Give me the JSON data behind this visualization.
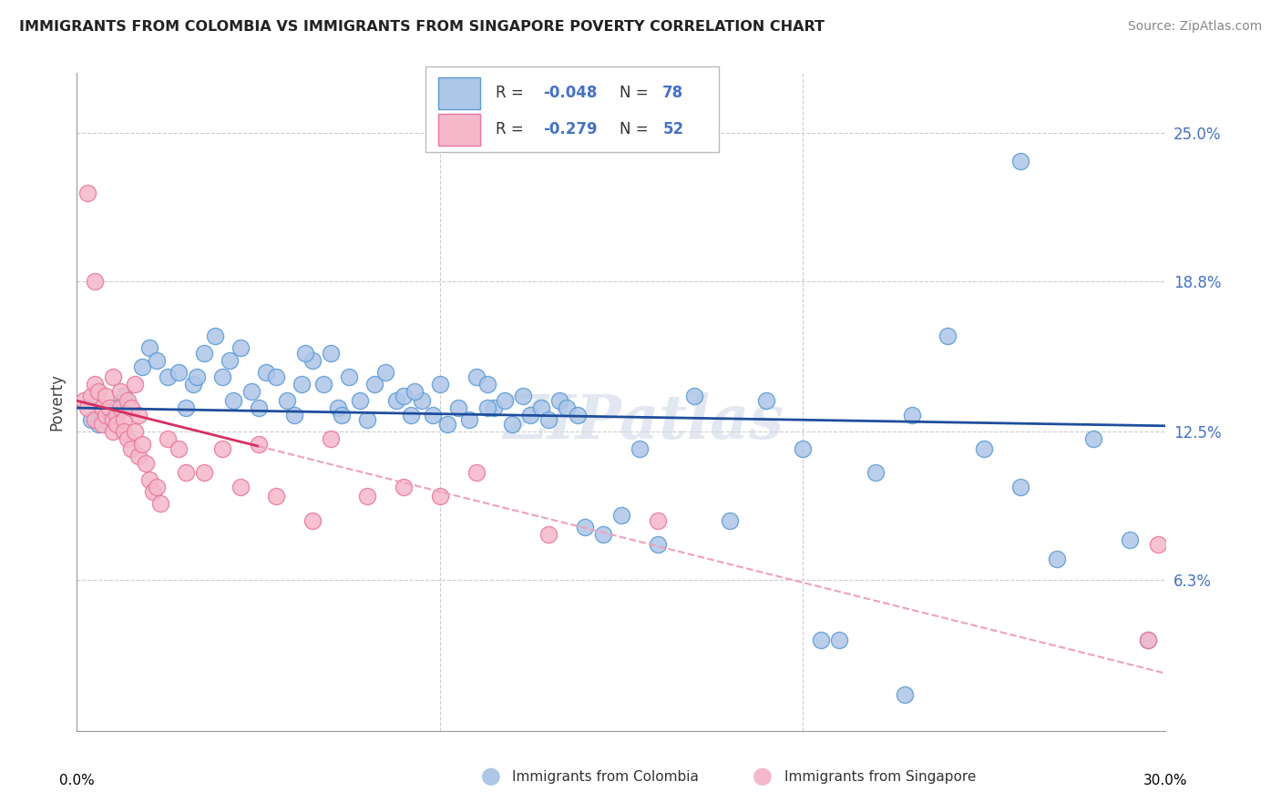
{
  "title": "IMMIGRANTS FROM COLOMBIA VS IMMIGRANTS FROM SINGAPORE POVERTY CORRELATION CHART",
  "source": "Source: ZipAtlas.com",
  "ylabel": "Poverty",
  "ytick_values": [
    6.3,
    12.5,
    18.8,
    25.0
  ],
  "ytick_labels": [
    "6.3%",
    "12.5%",
    "18.8%",
    "25.0%"
  ],
  "xlim": [
    0.0,
    30.0
  ],
  "ylim": [
    0.0,
    27.5
  ],
  "colombia_color": "#aec6e8",
  "singapore_color": "#f5b8cb",
  "colombia_edge": "#5b9bd5",
  "singapore_edge": "#e8789a",
  "trend_colombia_color": "#1f4e9c",
  "trend_singapore_solid": "#d63060",
  "trend_singapore_dash": "#f0a0bb",
  "legend_r_col": "-0.048",
  "legend_n_col": "78",
  "legend_r_sin": "-0.279",
  "legend_n_sin": "52",
  "watermark": "ZIPatlas",
  "colombia_x": [
    0.4,
    0.6,
    1.0,
    1.3,
    1.8,
    2.0,
    2.2,
    2.5,
    2.8,
    3.0,
    3.2,
    3.5,
    3.8,
    4.0,
    4.2,
    4.5,
    4.8,
    5.0,
    5.2,
    5.5,
    5.8,
    6.0,
    6.2,
    6.5,
    6.8,
    7.0,
    7.2,
    7.5,
    7.8,
    8.0,
    8.2,
    8.5,
    8.8,
    9.0,
    9.2,
    9.5,
    9.8,
    10.0,
    10.2,
    10.5,
    10.8,
    11.0,
    11.3,
    11.5,
    11.8,
    12.0,
    12.3,
    12.5,
    12.8,
    13.0,
    13.3,
    13.5,
    14.0,
    14.5,
    15.0,
    15.5,
    16.0,
    17.0,
    18.0,
    19.0,
    20.0,
    21.0,
    22.0,
    23.0,
    24.0,
    25.0,
    26.0,
    27.0,
    28.0,
    29.0,
    29.5,
    3.3,
    4.3,
    6.3,
    7.3,
    9.3,
    11.3,
    13.8
  ],
  "colombia_y": [
    13.0,
    12.8,
    13.5,
    14.0,
    15.2,
    16.0,
    15.5,
    14.8,
    15.0,
    13.5,
    14.5,
    15.8,
    16.5,
    14.8,
    15.5,
    16.0,
    14.2,
    13.5,
    15.0,
    14.8,
    13.8,
    13.2,
    14.5,
    15.5,
    14.5,
    15.8,
    13.5,
    14.8,
    13.8,
    13.0,
    14.5,
    15.0,
    13.8,
    14.0,
    13.2,
    13.8,
    13.2,
    14.5,
    12.8,
    13.5,
    13.0,
    14.8,
    14.5,
    13.5,
    13.8,
    12.8,
    14.0,
    13.2,
    13.5,
    13.0,
    13.8,
    13.5,
    8.5,
    8.2,
    9.0,
    11.8,
    7.8,
    14.0,
    8.8,
    13.8,
    11.8,
    3.8,
    10.8,
    13.2,
    16.5,
    11.8,
    10.2,
    7.2,
    12.2,
    8.0,
    3.8,
    14.8,
    13.8,
    15.8,
    13.2,
    14.2,
    13.5,
    13.2
  ],
  "singapore_x": [
    0.2,
    0.3,
    0.4,
    0.5,
    0.5,
    0.6,
    0.7,
    0.7,
    0.8,
    0.8,
    0.9,
    1.0,
    1.0,
    1.0,
    1.1,
    1.1,
    1.2,
    1.2,
    1.3,
    1.3,
    1.4,
    1.4,
    1.5,
    1.5,
    1.6,
    1.6,
    1.7,
    1.7,
    1.8,
    1.9,
    2.0,
    2.1,
    2.2,
    2.3,
    2.5,
    2.8,
    3.0,
    3.5,
    4.0,
    4.5,
    5.0,
    5.5,
    6.5,
    7.0,
    8.0,
    9.0,
    10.0,
    11.0,
    13.0,
    16.0,
    29.5,
    29.8
  ],
  "singapore_y": [
    13.8,
    13.5,
    14.0,
    14.5,
    13.0,
    14.2,
    13.5,
    12.8,
    14.0,
    13.2,
    13.5,
    13.0,
    12.5,
    14.8,
    13.2,
    12.8,
    14.2,
    13.5,
    13.0,
    12.5,
    13.8,
    12.2,
    13.5,
    11.8,
    14.5,
    12.5,
    13.2,
    11.5,
    12.0,
    11.2,
    10.5,
    10.0,
    10.2,
    9.5,
    12.2,
    11.8,
    10.8,
    10.8,
    11.8,
    10.2,
    12.0,
    9.8,
    8.8,
    12.2,
    9.8,
    10.2,
    9.8,
    10.8,
    8.2,
    8.8,
    3.8,
    7.8
  ],
  "singapore_extra_high_x": [
    0.3
  ],
  "singapore_extra_high_y": [
    22.5
  ],
  "singapore_medium_x": [
    0.5
  ],
  "singapore_medium_y": [
    18.8
  ],
  "colombia_outlier_high_x": [
    26.0
  ],
  "colombia_outlier_high_y": [
    23.8
  ],
  "colombia_low1_x": [
    20.5
  ],
  "colombia_low1_y": [
    3.8
  ],
  "colombia_low2_x": [
    22.8
  ],
  "colombia_low2_y": [
    1.5
  ],
  "trend_col_slope": -0.025,
  "trend_col_intercept": 13.5,
  "trend_sin_slope": -0.38,
  "trend_sin_intercept": 13.8
}
